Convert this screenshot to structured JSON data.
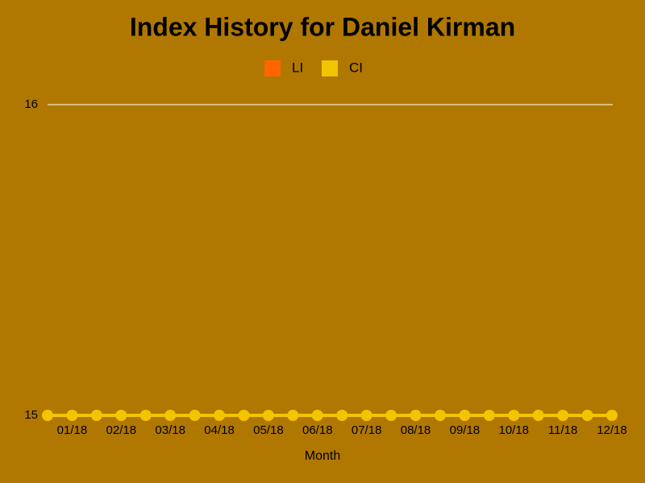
{
  "chart_data": {
    "type": "line",
    "title": "Index History for Daniel Kirman",
    "x_label": "Month",
    "categories": [
      null,
      "01/18",
      null,
      "02/18",
      null,
      "03/18",
      null,
      "04/18",
      null,
      "05/18",
      null,
      "06/18",
      null,
      "07/18",
      null,
      "08/18",
      null,
      "09/18",
      null,
      "10/18",
      null,
      "11/18",
      null,
      "12/18"
    ],
    "series": [
      {
        "name": "LI",
        "color": "#ff6600",
        "values": [
          15,
          15,
          15,
          15,
          15,
          15,
          15,
          15,
          15,
          15,
          15,
          15,
          15,
          15,
          15,
          15,
          15,
          15,
          15,
          15,
          15,
          15,
          15,
          15
        ]
      },
      {
        "name": "CI",
        "color": "#f2c500",
        "values": [
          15,
          15,
          15,
          15,
          15,
          15,
          15,
          15,
          15,
          15,
          15,
          15,
          15,
          15,
          15,
          15,
          15,
          15,
          15,
          15,
          15,
          15,
          15,
          15
        ]
      }
    ],
    "ylim": [
      15,
      16
    ],
    "yticks": [
      15,
      16
    ],
    "grid": true
  }
}
